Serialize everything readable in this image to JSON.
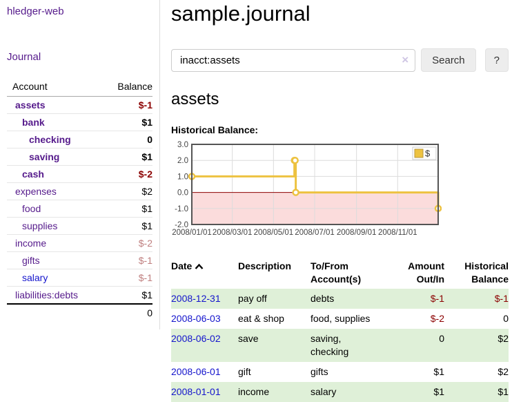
{
  "app": {
    "title": "hledger-web"
  },
  "colors": {
    "link_visited": "#551a8b",
    "link_unvisited": "#1414cc",
    "negative_strong": "#8b0000",
    "negative_muted": "#bf7f7f",
    "row_highlight_green": "#dff0d8",
    "series_gold": "#edc240"
  },
  "sidebar": {
    "journal_label": "Journal",
    "headers": [
      "Account",
      "Balance"
    ],
    "accounts": [
      {
        "label": "assets",
        "balance": "$-1",
        "level": 0,
        "bold": true,
        "balance_color": "negative-strong"
      },
      {
        "label": "bank",
        "balance": "$1",
        "level": 1,
        "bold": true,
        "balance_color": "default"
      },
      {
        "label": "checking",
        "balance": "0",
        "level": 2,
        "bold": true,
        "balance_color": "default"
      },
      {
        "label": "saving",
        "balance": "$1",
        "level": 2,
        "bold": true,
        "balance_color": "default"
      },
      {
        "label": "cash",
        "balance": "$-2",
        "level": 1,
        "bold": true,
        "balance_color": "negative-strong"
      },
      {
        "label": "expenses",
        "balance": "$2",
        "level": 0,
        "bold": false,
        "balance_color": "default"
      },
      {
        "label": "food",
        "balance": "$1",
        "level": 1,
        "bold": false,
        "balance_color": "default"
      },
      {
        "label": "supplies",
        "balance": "$1",
        "level": 1,
        "bold": false,
        "balance_color": "default"
      },
      {
        "label": "income",
        "balance": "$-2",
        "level": 0,
        "bold": false,
        "balance_color": "negative-muted"
      },
      {
        "label": "gifts",
        "balance": "$-1",
        "level": 1,
        "bold": false,
        "balance_color": "negative-muted"
      },
      {
        "label": "salary",
        "balance": "$-1",
        "level": 1,
        "bold": false,
        "balance_color": "negative-muted",
        "link_state": "unvisited"
      },
      {
        "label": "liabilities:debts",
        "balance": "$1",
        "level": 0,
        "bold": false,
        "balance_color": "default"
      }
    ],
    "total": "0"
  },
  "main": {
    "title": "sample.journal",
    "search": {
      "value": "inacct:assets",
      "clear_icon": "×",
      "button_label": "Search",
      "help_label": "?"
    },
    "account_heading": "assets",
    "chart_label": "Historical Balance:"
  },
  "chart_data": {
    "type": "line",
    "title": "Historical Balance",
    "legend": "$",
    "legend_position": "top-right",
    "grid": true,
    "xrange": [
      0,
      365
    ],
    "ylim": [
      -2,
      3
    ],
    "yticks": [
      "3.0",
      "2.0",
      "1.0",
      "0.0",
      "-1.0",
      "-2.0"
    ],
    "xticks": [
      {
        "label": "2008/01/01",
        "x": 0
      },
      {
        "label": "2008/03/01",
        "x": 60
      },
      {
        "label": "2008/05/01",
        "x": 121
      },
      {
        "label": "2008/07/01",
        "x": 182
      },
      {
        "label": "2008/09/01",
        "x": 244
      },
      {
        "label": "2008/11/01",
        "x": 305
      }
    ],
    "series": [
      {
        "name": "$",
        "color": "#edc240",
        "steps": true,
        "points": [
          {
            "date": "2008-01-01",
            "x": 0,
            "y": 1
          },
          {
            "date": "2008-06-01",
            "x": 152,
            "y": 2
          },
          {
            "date": "2008-06-02",
            "x": 153,
            "y": 2
          },
          {
            "date": "2008-06-03",
            "x": 154,
            "y": 0
          },
          {
            "date": "2008-12-31",
            "x": 365,
            "y": -1
          }
        ]
      }
    ],
    "negative_region_color": "#fbdcdc",
    "zero_line_color": "#8b0000",
    "border_color": "#545454",
    "gridline_color": "#dcdcdc"
  },
  "register": {
    "headers": {
      "date": "Date",
      "sort_icon": "chevron-up",
      "description": "Description",
      "tofrom": [
        "To/From",
        "Account(s)"
      ],
      "amount": [
        "Amount",
        "Out/In"
      ],
      "balance": [
        "Historical",
        "Balance"
      ]
    },
    "rows": [
      {
        "date": "2008-12-31",
        "description": "pay off",
        "accounts": [
          "debts"
        ],
        "amount": "$-1",
        "balance": "$-1",
        "amount_negative": true,
        "balance_negative": true
      },
      {
        "date": "2008-06-03",
        "description": "eat & shop",
        "accounts": [
          "food, supplies"
        ],
        "amount": "$-2",
        "balance": "0",
        "amount_negative": true,
        "balance_negative": false
      },
      {
        "date": "2008-06-02",
        "description": "save",
        "accounts": [
          "saving,",
          "checking"
        ],
        "amount": "0",
        "balance": "$2",
        "amount_negative": false,
        "balance_negative": false
      },
      {
        "date": "2008-06-01",
        "description": "gift",
        "accounts": [
          "gifts"
        ],
        "amount": "$1",
        "balance": "$2",
        "amount_negative": false,
        "balance_negative": false
      },
      {
        "date": "2008-01-01",
        "description": "income",
        "accounts": [
          "salary"
        ],
        "amount": "$1",
        "balance": "$1",
        "amount_negative": false,
        "balance_negative": false
      }
    ]
  }
}
